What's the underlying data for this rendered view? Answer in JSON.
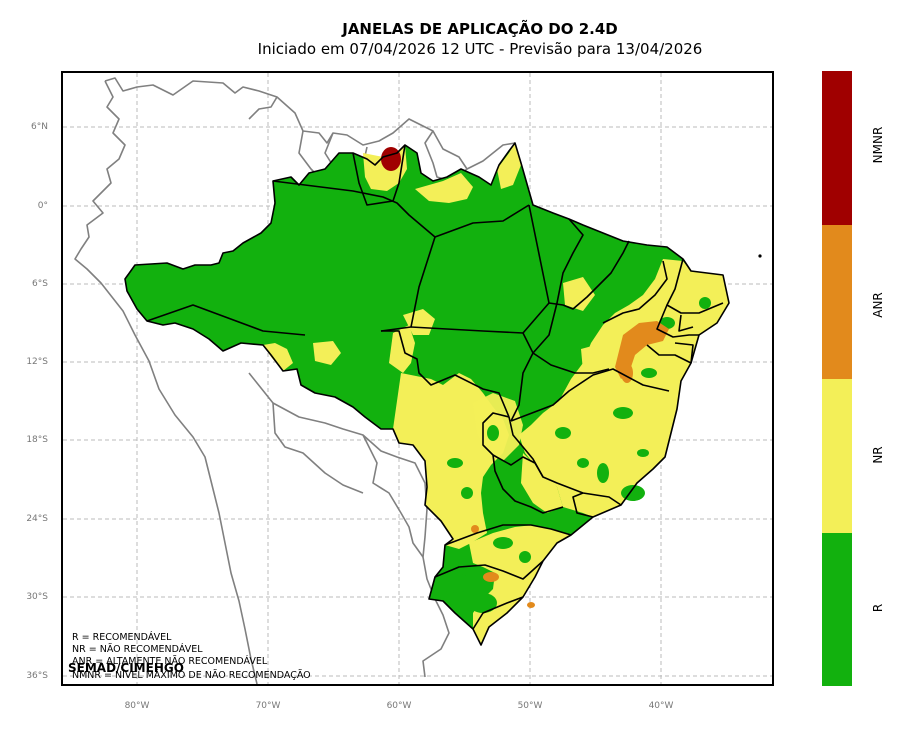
{
  "title": "JANELAS DE APLICAÇÃO DO 2.4D",
  "subtitle": "Iniciado em 07/04/2026 12 UTC - Previsão para 13/04/2026",
  "lat_labels": [
    "6°N",
    "0°",
    "6°S",
    "12°S",
    "18°S",
    "24°S",
    "30°S",
    "36°S"
  ],
  "lon_labels": [
    "80°W",
    "70°W",
    "60°W",
    "50°W",
    "40°W"
  ],
  "legend": [
    "R = RECOMENDÁVEL",
    "NR = NÃO RECOMENDÁVEL",
    "ANR = ALTAMENTE NÃO RECOMENDÁVEL",
    "NMNR = NÍVEL MÁXIMO DE NÃO RECOMENDAÇÃO"
  ],
  "credit": "SEMAD/CIMEHGO",
  "colorbar": [
    {
      "label": "NMNR",
      "color": "#a00000"
    },
    {
      "label": "ANR",
      "color": "#e28a1c"
    },
    {
      "label": "NR",
      "color": "#f3ef58"
    },
    {
      "label": "R",
      "color": "#12b10e"
    }
  ]
}
